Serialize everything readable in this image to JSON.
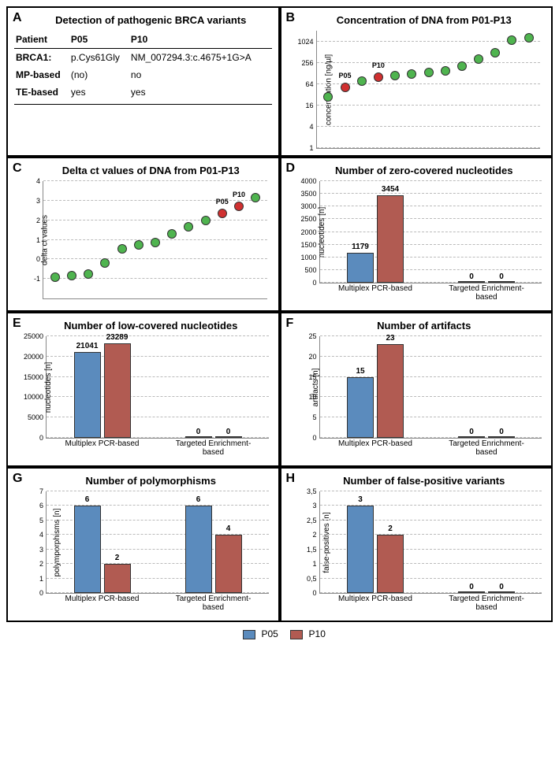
{
  "colors": {
    "p05": "#5b8bbd",
    "p10": "#b15b52",
    "dot_green": "#4fb44f",
    "dot_red": "#d03030",
    "grid": "#bbbbbb",
    "axis": "#888888",
    "text": "#000000",
    "bg": "#ffffff"
  },
  "legend": {
    "p05": "P05",
    "p10": "P10"
  },
  "panels": {
    "A": {
      "letter": "A",
      "title": "Detection of  pathogenic BRCA variants",
      "table": {
        "columns": [
          "Patient",
          "P05",
          "P10"
        ],
        "rows": [
          [
            "BRCA1:",
            "p.Cys61Gly",
            "NM_007294.3:c.4675+1G>A"
          ],
          [
            "MP-based",
            "(no)",
            "no"
          ],
          [
            "TE-based",
            "yes",
            "yes"
          ]
        ]
      }
    },
    "B": {
      "letter": "B",
      "title": "Concentration of DNA from P01-P13",
      "ylabel": "concentration [ng/µl]",
      "type": "scatter",
      "yscale": "log2",
      "ylim": [
        1,
        2048
      ],
      "yticks": [
        1,
        4,
        16,
        64,
        256,
        1024
      ],
      "n": 13,
      "values": [
        28,
        52,
        78,
        100,
        110,
        120,
        135,
        150,
        200,
        320,
        500,
        1100,
        1300
      ],
      "highlight": {
        "1": "P05",
        "3": "P10"
      }
    },
    "C": {
      "letter": "C",
      "title": "Delta ct values of DNA from P01-P13",
      "ylabel": "delta ct values",
      "type": "scatter",
      "yscale": "linear",
      "ylim": [
        -2,
        4
      ],
      "yticks": [
        -1,
        0,
        1,
        2,
        3,
        4
      ],
      "n": 13,
      "values": [
        -0.9,
        -0.85,
        -0.75,
        -0.2,
        0.55,
        0.75,
        0.85,
        1.3,
        1.65,
        2.0,
        2.35,
        2.7,
        3.15
      ],
      "highlight": {
        "10": "P05",
        "11": "P10"
      }
    },
    "D": {
      "letter": "D",
      "title": "Number of zero-covered nucleotides",
      "ylabel": "nucleotides [n]",
      "type": "bar",
      "ylim": [
        0,
        4000
      ],
      "ytick_step": 500,
      "categories": [
        "Multiplex PCR-based",
        "Targeted Enrichment-based"
      ],
      "series": {
        "P05": [
          1179,
          0
        ],
        "P10": [
          3454,
          0
        ]
      }
    },
    "E": {
      "letter": "E",
      "title": "Number of low-covered nucleotides",
      "ylabel": "nucleotides [n]",
      "type": "bar",
      "ylim": [
        0,
        25000
      ],
      "ytick_step": 5000,
      "categories": [
        "Multiplex PCR-based",
        "Targeted Enrichment-based"
      ],
      "series": {
        "P05": [
          21041,
          0
        ],
        "P10": [
          23289,
          0
        ]
      }
    },
    "F": {
      "letter": "F",
      "title": "Number of artifacts",
      "ylabel": "artifacts [n]",
      "type": "bar",
      "ylim": [
        0,
        25
      ],
      "ytick_step": 5,
      "categories": [
        "Multiplex PCR-based",
        "Targeted Enrichment-based"
      ],
      "series": {
        "P05": [
          15,
          0
        ],
        "P10": [
          23,
          0
        ]
      }
    },
    "G": {
      "letter": "G",
      "title": "Number of polymorphisms",
      "ylabel": "polymporphisms [n]",
      "type": "bar",
      "ylim": [
        0,
        7
      ],
      "ytick_step": 1,
      "categories": [
        "Multiplex PCR-based",
        "Targeted Enrichment-based"
      ],
      "series": {
        "P05": [
          6,
          6
        ],
        "P10": [
          2,
          4
        ]
      }
    },
    "H": {
      "letter": "H",
      "title": "Number of false-positive variants",
      "ylabel": "false-positives [n]",
      "type": "bar",
      "ylim": [
        0,
        3.5
      ],
      "ytick_step": 0.5,
      "decimal_comma": true,
      "categories": [
        "Multiplex PCR-based",
        "Targeted Enrichment-based"
      ],
      "series": {
        "P05": [
          3,
          0
        ],
        "P10": [
          2,
          0
        ]
      }
    }
  }
}
